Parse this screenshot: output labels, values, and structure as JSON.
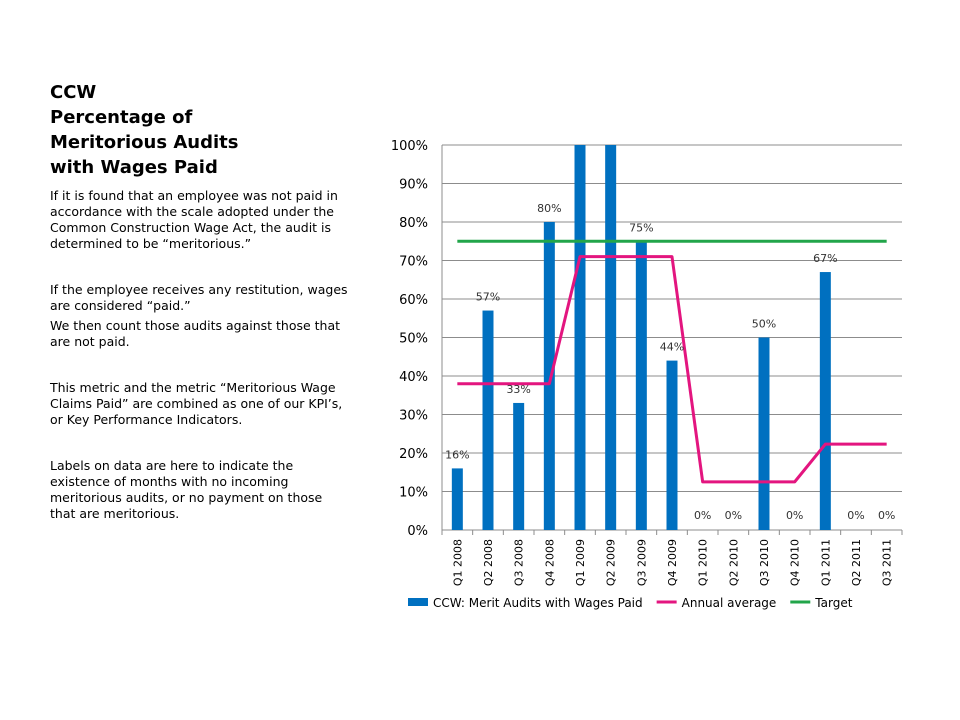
{
  "title_lines": [
    "CCW",
    "Percentage of",
    "Meritorious Audits",
    "with Wages Paid"
  ],
  "paragraphs": [
    "If it is found that an employee was not paid in accordance with the scale adopted under the Common Construction Wage Act, the audit is determined to be “meritorious.”",
    "If the employee receives any restitution, wages are considered “paid.”",
    "We then count those audits against those that are not paid.",
    "This metric and the metric “Meritorious Wage Claims Paid” are combined as one of our KPI’s, or Key Performance Indicators.",
    "Labels on data are here to indicate the existence of months with no incoming meritorious audits, or no payment on those that are meritorious."
  ],
  "chart_data": {
    "type": "bar",
    "categories": [
      "Q1 2008",
      "Q2 2008",
      "Q3 2008",
      "Q4 2008",
      "Q1 2009",
      "Q2 2009",
      "Q3 2009",
      "Q4 2009",
      "Q1 2010",
      "Q2 2010",
      "Q3 2010",
      "Q4 2010",
      "Q1 2011",
      "Q2 2011",
      "Q3 2011"
    ],
    "ylim": [
      0,
      100
    ],
    "yticks": [
      "0%",
      "10%",
      "20%",
      "30%",
      "40%",
      "50%",
      "60%",
      "70%",
      "80%",
      "90%",
      "100%"
    ],
    "grid": true,
    "legend_position": "bottom",
    "series": [
      {
        "name": "CCW: Merit Audits with Wages Paid",
        "kind": "bar",
        "color": "#0070c0",
        "values": [
          16,
          57,
          33,
          80,
          100,
          100,
          75,
          44,
          0,
          0,
          50,
          0,
          67,
          0,
          0
        ],
        "labels": [
          "16%",
          "57%",
          "33%",
          "80%",
          "",
          "",
          "75%",
          "44%",
          "0%",
          "0%",
          "50%",
          "0%",
          "67%",
          "0%",
          "0%"
        ]
      },
      {
        "name": "Annual average",
        "kind": "line",
        "color": "#e3157f",
        "values": [
          38,
          38,
          38,
          38,
          71,
          71,
          71,
          71,
          12.5,
          12.5,
          12.5,
          12.5,
          22.3,
          22.3,
          22.3
        ]
      },
      {
        "name": "Target",
        "kind": "line",
        "color": "#22a54a",
        "values": [
          75,
          75,
          75,
          75,
          75,
          75,
          75,
          75,
          75,
          75,
          75,
          75,
          75,
          75,
          75
        ]
      }
    ]
  }
}
